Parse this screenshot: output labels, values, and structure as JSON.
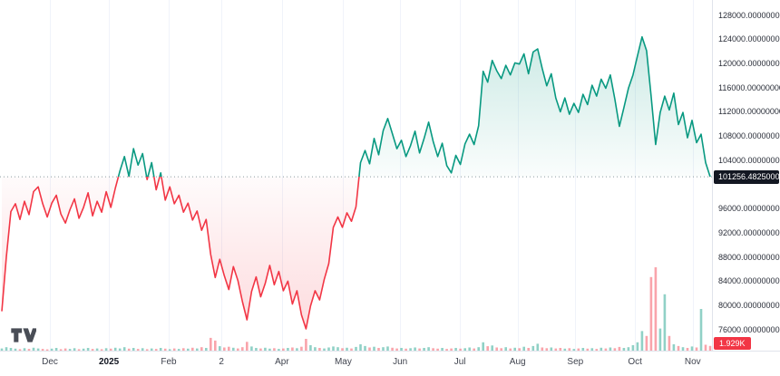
{
  "app": {
    "name": "TradingView price chart",
    "logo_name": "tradingview-logo"
  },
  "chart_data": {
    "type": "line",
    "style": "baseline-area-with-volume",
    "title": "",
    "last_price_label": "101256.48250000",
    "baseline_value": 101256.4825,
    "volume_last_label": "1.929K",
    "volume_last_value": 1929,
    "ylim": [
      72500,
      130500
    ],
    "grid": "vertical-only",
    "legend_position": "none",
    "colors": {
      "up_line": "#089981",
      "down_line": "#f23645",
      "up_fill_strong": "rgba(8,153,129,0.26)",
      "up_fill_weak": "rgba(8,153,129,0.02)",
      "down_fill_strong": "rgba(242,54,69,0.20)",
      "down_fill_weak": "rgba(242,54,69,0.02)",
      "baseline_dotted": "#8a9aa0",
      "price_label_bg": "#131722",
      "volume_label_bg": "#f23645",
      "grid_line": "#f0f3fa",
      "axis_text": "#2a2e39",
      "axis_border": "#e0e3eb",
      "vol_up": "rgba(8,153,129,0.45)",
      "vol_down": "rgba(242,54,69,0.45)"
    },
    "time_ticks": [
      {
        "label": "Dec",
        "x": 0.07,
        "year": false
      },
      {
        "label": "2025",
        "x": 0.153,
        "year": true
      },
      {
        "label": "Feb",
        "x": 0.237,
        "year": false
      },
      {
        "label": "2",
        "x": 0.311,
        "year": false
      },
      {
        "label": "Apr",
        "x": 0.396,
        "year": false
      },
      {
        "label": "May",
        "x": 0.482,
        "year": false
      },
      {
        "label": "Jun",
        "x": 0.562,
        "year": false
      },
      {
        "label": "Jul",
        "x": 0.646,
        "year": false
      },
      {
        "label": "Aug",
        "x": 0.727,
        "year": false
      },
      {
        "label": "Sep",
        "x": 0.808,
        "year": false
      },
      {
        "label": "Oct",
        "x": 0.892,
        "year": false
      },
      {
        "label": "Nov",
        "x": 0.973,
        "year": false
      }
    ],
    "price_ticks": [
      {
        "value": 128000,
        "label": "128000.00000000"
      },
      {
        "value": 124000,
        "label": "124000.00000000"
      },
      {
        "value": 120000,
        "label": "120000.00000000"
      },
      {
        "value": 116000,
        "label": "116000.00000000"
      },
      {
        "value": 112000,
        "label": "112000.00000000"
      },
      {
        "value": 108000,
        "label": "108000.00000000"
      },
      {
        "value": 104000,
        "label": "104000.00000000"
      },
      {
        "value": 96000,
        "label": "96000.00000000"
      },
      {
        "value": 92000,
        "label": "92000.00000000"
      },
      {
        "value": 88000,
        "label": "88000.00000000"
      },
      {
        "value": 84000,
        "label": "84000.00000000"
      },
      {
        "value": 80000,
        "label": "80000.00000000"
      },
      {
        "value": 76000,
        "label": "76000.00000000"
      }
    ],
    "prices": [
      79000,
      88000,
      95500,
      96800,
      94200,
      97200,
      95000,
      98800,
      99600,
      96800,
      94600,
      96900,
      98200,
      95100,
      93600,
      95800,
      97600,
      94400,
      96200,
      98600,
      94800,
      97200,
      95400,
      98800,
      96200,
      99400,
      102200,
      104600,
      101300,
      105900,
      103200,
      105100,
      100800,
      103600,
      99100,
      101900,
      97400,
      99600,
      96800,
      98200,
      95400,
      96900,
      94100,
      95600,
      92400,
      94200,
      88400,
      84600,
      87600,
      84900,
      82600,
      86400,
      84100,
      80600,
      77600,
      82300,
      84700,
      81400,
      83600,
      86600,
      83400,
      85600,
      82400,
      84000,
      80200,
      82400,
      78400,
      76100,
      79900,
      82400,
      80900,
      84300,
      86900,
      92900,
      94600,
      92900,
      95300,
      93900,
      96300,
      103600,
      105600,
      103400,
      107600,
      104900,
      108900,
      110900,
      108400,
      105900,
      107300,
      104600,
      106400,
      108800,
      105200,
      107600,
      110300,
      107100,
      104600,
      106800,
      103100,
      101900,
      104800,
      103300,
      106700,
      108300,
      106600,
      109700,
      118700,
      116900,
      120500,
      118800,
      117500,
      119700,
      118100,
      120100,
      119900,
      121600,
      118300,
      121900,
      122400,
      119200,
      116300,
      118300,
      114300,
      112000,
      114300,
      111600,
      113400,
      111900,
      114900,
      113200,
      116400,
      114600,
      117400,
      115900,
      118100,
      114100,
      109600,
      112700,
      115900,
      118100,
      121300,
      124400,
      122100,
      114600,
      106600,
      111900,
      114600,
      112300,
      115100,
      109900,
      111900,
      107700,
      110600,
      106900,
      108300,
      103600,
      101256.4825
    ],
    "volumes": [
      900,
      1400,
      1100,
      800,
      600,
      1000,
      700,
      1200,
      900,
      700,
      500,
      800,
      1100,
      600,
      900,
      700,
      1000,
      600,
      800,
      1100,
      700,
      900,
      600,
      1000,
      800,
      1200,
      900,
      1400,
      800,
      1100,
      700,
      1000,
      600,
      900,
      700,
      1100,
      800,
      600,
      900,
      700,
      1000,
      800,
      1200,
      900,
      1400,
      1100,
      5200,
      4100,
      1800,
      1300,
      1600,
      1200,
      900,
      1400,
      3600,
      1700,
      1100,
      900,
      1200,
      800,
      1000,
      700,
      900,
      1100,
      1300,
      1000,
      1600,
      4800,
      2200,
      1400,
      1100,
      900,
      1300,
      1700,
      1400,
      1000,
      1200,
      900,
      1500,
      2600,
      1900,
      1300,
      1600,
      1100,
      1400,
      1700,
      1200,
      900,
      1100,
      800,
      1000,
      1300,
      900,
      1100,
      1400,
      1000,
      800,
      1100,
      700,
      900,
      1100,
      800,
      1000,
      1300,
      900,
      1400,
      3400,
      1800,
      2100,
      1300,
      1000,
      1400,
      900,
      1200,
      1000,
      1600,
      1100,
      1900,
      2800,
      1300,
      1000,
      1300,
      900,
      1100,
      800,
      1000,
      700,
      900,
      1100,
      800,
      1000,
      700,
      1200,
      900,
      1300,
      1000,
      1500,
      1100,
      1400,
      2200,
      3400,
      8000,
      6000,
      30000,
      34000,
      9000,
      23000,
      6000,
      2600,
      1900,
      1400,
      1100,
      1700,
      1300,
      17000,
      2400,
      1929
    ]
  }
}
